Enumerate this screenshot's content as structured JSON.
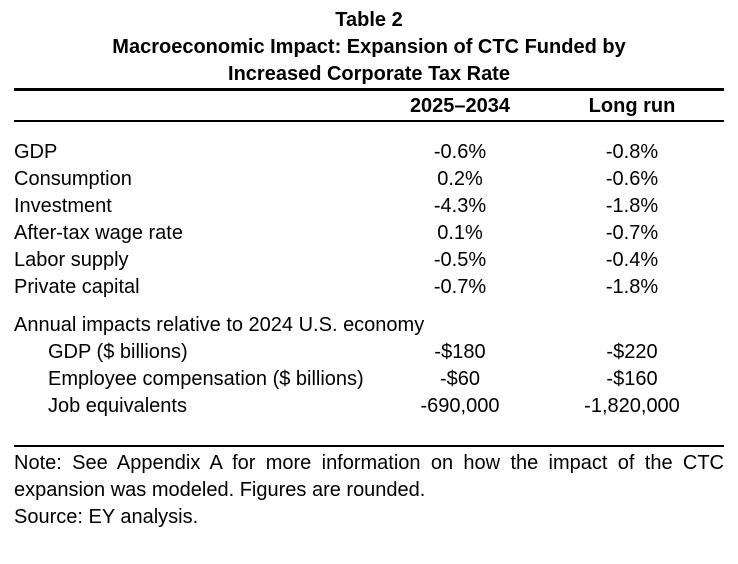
{
  "table": {
    "caption": "Table 2",
    "title": "Macroeconomic Impact: Expansion of CTC Funded by Increased Corporate Tax Rate",
    "columns": [
      "2025–2034",
      "Long run"
    ],
    "rows": [
      {
        "label": "GDP",
        "period": "-0.6%",
        "long_run": "-0.8%"
      },
      {
        "label": "Consumption",
        "period": "0.2%",
        "long_run": "-0.6%"
      },
      {
        "label": "Investment",
        "period": "-4.3%",
        "long_run": "-1.8%"
      },
      {
        "label": "After-tax wage rate",
        "period": "0.1%",
        "long_run": "-0.7%"
      },
      {
        "label": "Labor supply",
        "period": "-0.5%",
        "long_run": "-0.4%"
      },
      {
        "label": "Private capital",
        "period": "-0.7%",
        "long_run": "-1.8%"
      }
    ],
    "section": {
      "header": "Annual impacts relative to 2024 U.S. economy",
      "rows": [
        {
          "label": "GDP ($ billions)",
          "period": "-$180",
          "long_run": "-$220"
        },
        {
          "label": "Employee compensation ($ billions)",
          "period": "-$60",
          "long_run": "-$160"
        },
        {
          "label": "Job equivalents",
          "period": "-690,000",
          "long_run": "-1,820,000"
        }
      ]
    },
    "note": "Note: See Appendix A for more information on how the impact of the CTC expansion was modeled. Figures are rounded.",
    "source": "Source: EY analysis."
  },
  "colors": {
    "text": "#000000",
    "background": "#ffffff",
    "rule": "#000000"
  }
}
